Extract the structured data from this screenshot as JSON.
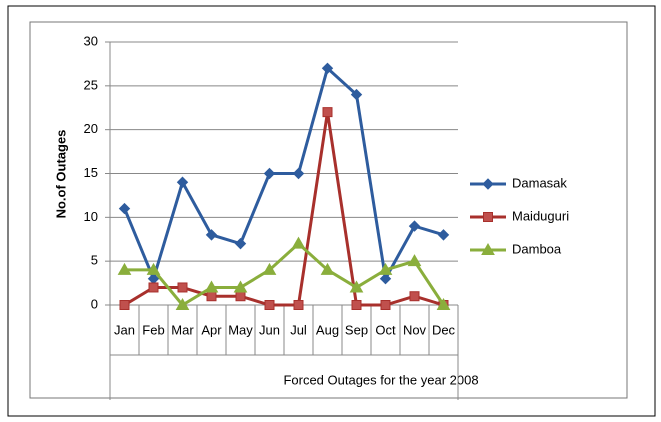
{
  "chart_data": {
    "type": "line",
    "x_label": "Forced Outages for the year 2008",
    "y_label": "No.of Outages",
    "categories": [
      "Jan",
      "Feb",
      "Mar",
      "Apr",
      "May",
      "Jun",
      "Jul",
      "Aug",
      "Sep",
      "Oct",
      "Nov",
      "Dec"
    ],
    "series": [
      {
        "name": "Damasak",
        "color": "#2e5c9e",
        "marker": "diamond",
        "values": [
          11,
          3,
          14,
          8,
          7,
          15,
          15,
          27,
          24,
          3,
          9,
          8
        ]
      },
      {
        "name": "Maiduguri",
        "color": "#a8302c",
        "marker": "square",
        "values": [
          0,
          2,
          2,
          1,
          1,
          0,
          0,
          22,
          0,
          0,
          1,
          0
        ]
      },
      {
        "name": "Damboa",
        "color": "#8aae3c",
        "marker": "triangle",
        "values": [
          4,
          4,
          0,
          2,
          2,
          4,
          7,
          4,
          2,
          4,
          5,
          0
        ]
      }
    ],
    "ylim": [
      0,
      30
    ],
    "yticks": [
      0,
      5,
      10,
      15,
      20,
      25,
      30
    ],
    "grid": true,
    "legend": "right"
  }
}
